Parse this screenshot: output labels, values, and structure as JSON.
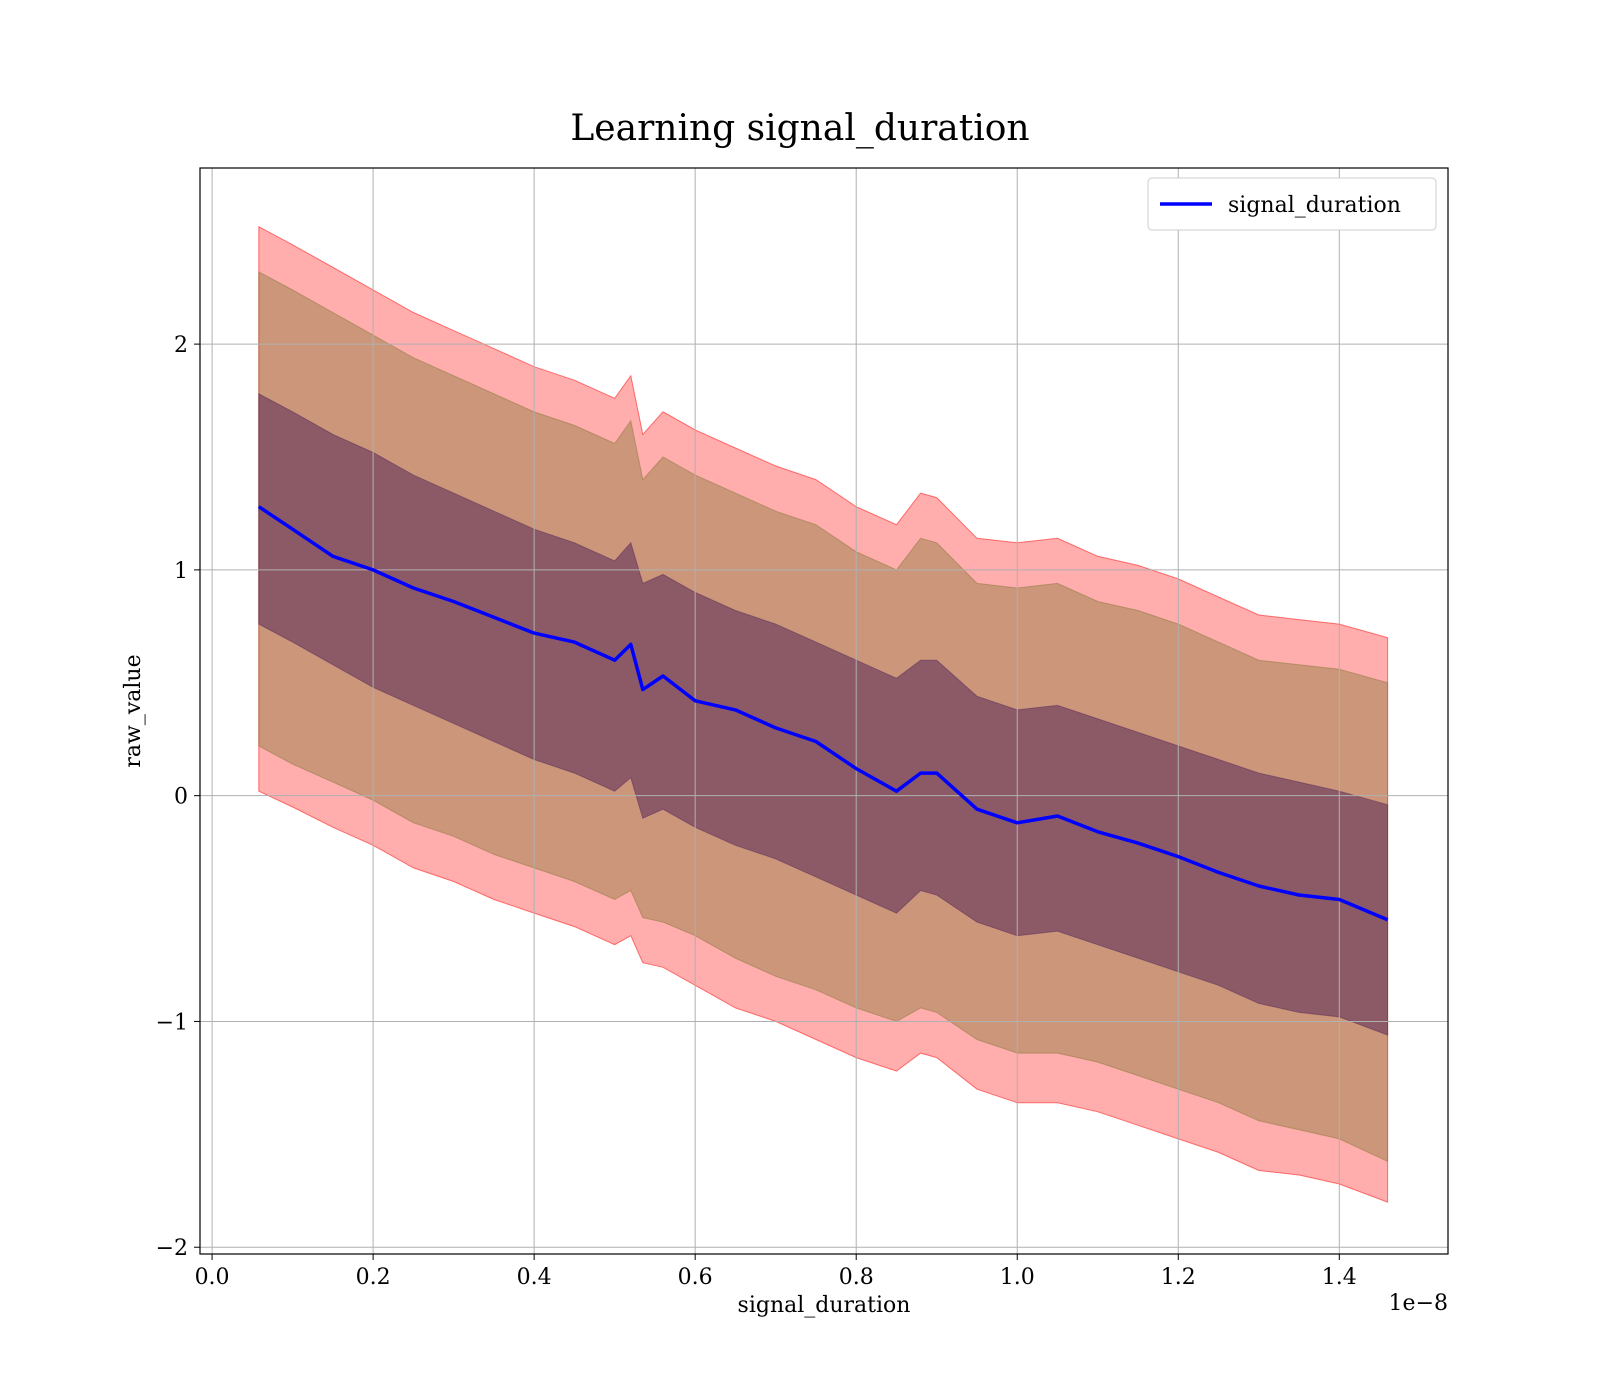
{
  "chart_data": {
    "type": "line",
    "title": "Learning signal_duration",
    "xlabel": "signal_duration",
    "ylabel": "raw_value",
    "x_offset_label": "1e−8",
    "xlim": [
      -0.015,
      1.535
    ],
    "ylim": [
      -2.03,
      2.78
    ],
    "x_ticks": [
      0.0,
      0.2,
      0.4,
      0.6,
      0.8,
      1.0,
      1.2,
      1.4
    ],
    "x_tick_labels": [
      "0.0",
      "0.2",
      "0.4",
      "0.6",
      "0.8",
      "1.0",
      "1.2",
      "1.4"
    ],
    "y_ticks": [
      -2,
      -1,
      0,
      1,
      2
    ],
    "y_tick_labels": [
      "−2",
      "−1",
      "0",
      "1",
      "2"
    ],
    "grid": true,
    "legend": {
      "position": "top-right",
      "entries": [
        "signal_duration"
      ]
    },
    "colors": {
      "line": "#0000ff",
      "band_outer": "#ff0000",
      "band_middle": "#8b7a3a",
      "band_inner": "#5a2a5a"
    },
    "x": [
      0.058,
      0.1,
      0.15,
      0.2,
      0.25,
      0.3,
      0.35,
      0.4,
      0.45,
      0.5,
      0.52,
      0.535,
      0.56,
      0.6,
      0.65,
      0.7,
      0.75,
      0.8,
      0.85,
      0.88,
      0.9,
      0.95,
      1.0,
      1.05,
      1.1,
      1.15,
      1.2,
      1.25,
      1.3,
      1.35,
      1.4,
      1.46
    ],
    "series": [
      {
        "name": "signal_duration",
        "values": [
          1.28,
          1.18,
          1.06,
          1.0,
          0.92,
          0.86,
          0.79,
          0.72,
          0.68,
          0.6,
          0.67,
          0.47,
          0.53,
          0.42,
          0.38,
          0.3,
          0.24,
          0.12,
          0.02,
          0.1,
          0.1,
          -0.06,
          -0.12,
          -0.09,
          -0.16,
          -0.21,
          -0.27,
          -0.34,
          -0.4,
          -0.44,
          -0.46,
          -0.55
        ]
      }
    ],
    "bands": [
      {
        "lower": [
          0.02,
          -0.05,
          -0.14,
          -0.22,
          -0.32,
          -0.38,
          -0.46,
          -0.52,
          -0.58,
          -0.66,
          -0.62,
          -0.74,
          -0.76,
          -0.84,
          -0.94,
          -1.0,
          -1.08,
          -1.16,
          -1.22,
          -1.14,
          -1.16,
          -1.3,
          -1.36,
          -1.36,
          -1.4,
          -1.46,
          -1.52,
          -1.58,
          -1.66,
          -1.68,
          -1.72,
          -1.8
        ],
        "upper": [
          2.52,
          2.44,
          2.34,
          2.24,
          2.14,
          2.06,
          1.98,
          1.9,
          1.84,
          1.76,
          1.86,
          1.6,
          1.7,
          1.62,
          1.54,
          1.46,
          1.4,
          1.28,
          1.2,
          1.34,
          1.32,
          1.14,
          1.12,
          1.14,
          1.06,
          1.02,
          0.96,
          0.88,
          0.8,
          0.78,
          0.76,
          0.7
        ]
      },
      {
        "lower": [
          0.22,
          0.14,
          0.06,
          -0.02,
          -0.12,
          -0.18,
          -0.26,
          -0.32,
          -0.38,
          -0.46,
          -0.42,
          -0.54,
          -0.56,
          -0.62,
          -0.72,
          -0.8,
          -0.86,
          -0.94,
          -1.0,
          -0.94,
          -0.96,
          -1.08,
          -1.14,
          -1.14,
          -1.18,
          -1.24,
          -1.3,
          -1.36,
          -1.44,
          -1.48,
          -1.52,
          -1.62
        ],
        "upper": [
          2.32,
          2.24,
          2.14,
          2.04,
          1.94,
          1.86,
          1.78,
          1.7,
          1.64,
          1.56,
          1.66,
          1.4,
          1.5,
          1.42,
          1.34,
          1.26,
          1.2,
          1.08,
          1.0,
          1.14,
          1.12,
          0.94,
          0.92,
          0.94,
          0.86,
          0.82,
          0.76,
          0.68,
          0.6,
          0.58,
          0.56,
          0.5
        ]
      },
      {
        "lower": [
          0.76,
          0.68,
          0.58,
          0.48,
          0.4,
          0.32,
          0.24,
          0.16,
          0.1,
          0.02,
          0.08,
          -0.1,
          -0.06,
          -0.14,
          -0.22,
          -0.28,
          -0.36,
          -0.44,
          -0.52,
          -0.42,
          -0.44,
          -0.56,
          -0.62,
          -0.6,
          -0.66,
          -0.72,
          -0.78,
          -0.84,
          -0.92,
          -0.96,
          -0.98,
          -1.06
        ],
        "upper": [
          1.78,
          1.7,
          1.6,
          1.52,
          1.42,
          1.34,
          1.26,
          1.18,
          1.12,
          1.04,
          1.12,
          0.94,
          0.98,
          0.9,
          0.82,
          0.76,
          0.68,
          0.6,
          0.52,
          0.6,
          0.6,
          0.44,
          0.38,
          0.4,
          0.34,
          0.28,
          0.22,
          0.16,
          0.1,
          0.06,
          0.02,
          -0.04
        ]
      }
    ]
  }
}
